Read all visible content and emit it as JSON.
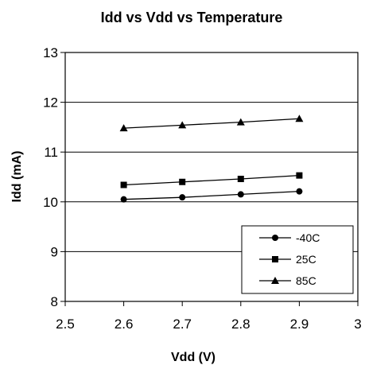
{
  "chart_data": {
    "type": "line",
    "title": "Idd vs Vdd vs Temperature",
    "xlabel": "Vdd (V)",
    "ylabel": "Idd (mA)",
    "xlim": [
      2.5,
      3
    ],
    "ylim": [
      8,
      13
    ],
    "x_ticks": [
      "2.5",
      "2.6",
      "2.7",
      "2.8",
      "2.9",
      "3"
    ],
    "y_ticks": [
      "8",
      "9",
      "10",
      "11",
      "12",
      "13"
    ],
    "x": [
      2.6,
      2.7,
      2.8,
      2.9
    ],
    "grid": true,
    "legend_position": "bottom-right",
    "series": [
      {
        "name": "-40C",
        "marker": "circle",
        "values": [
          10.05,
          10.09,
          10.15,
          10.21
        ]
      },
      {
        "name": "25C",
        "marker": "square",
        "values": [
          10.34,
          10.4,
          10.46,
          10.53
        ]
      },
      {
        "name": "85C",
        "marker": "triangle",
        "values": [
          11.48,
          11.54,
          11.6,
          11.67
        ]
      }
    ],
    "colors": {
      "line": "#000000",
      "grid": "#000000",
      "background": "#ffffff"
    }
  }
}
